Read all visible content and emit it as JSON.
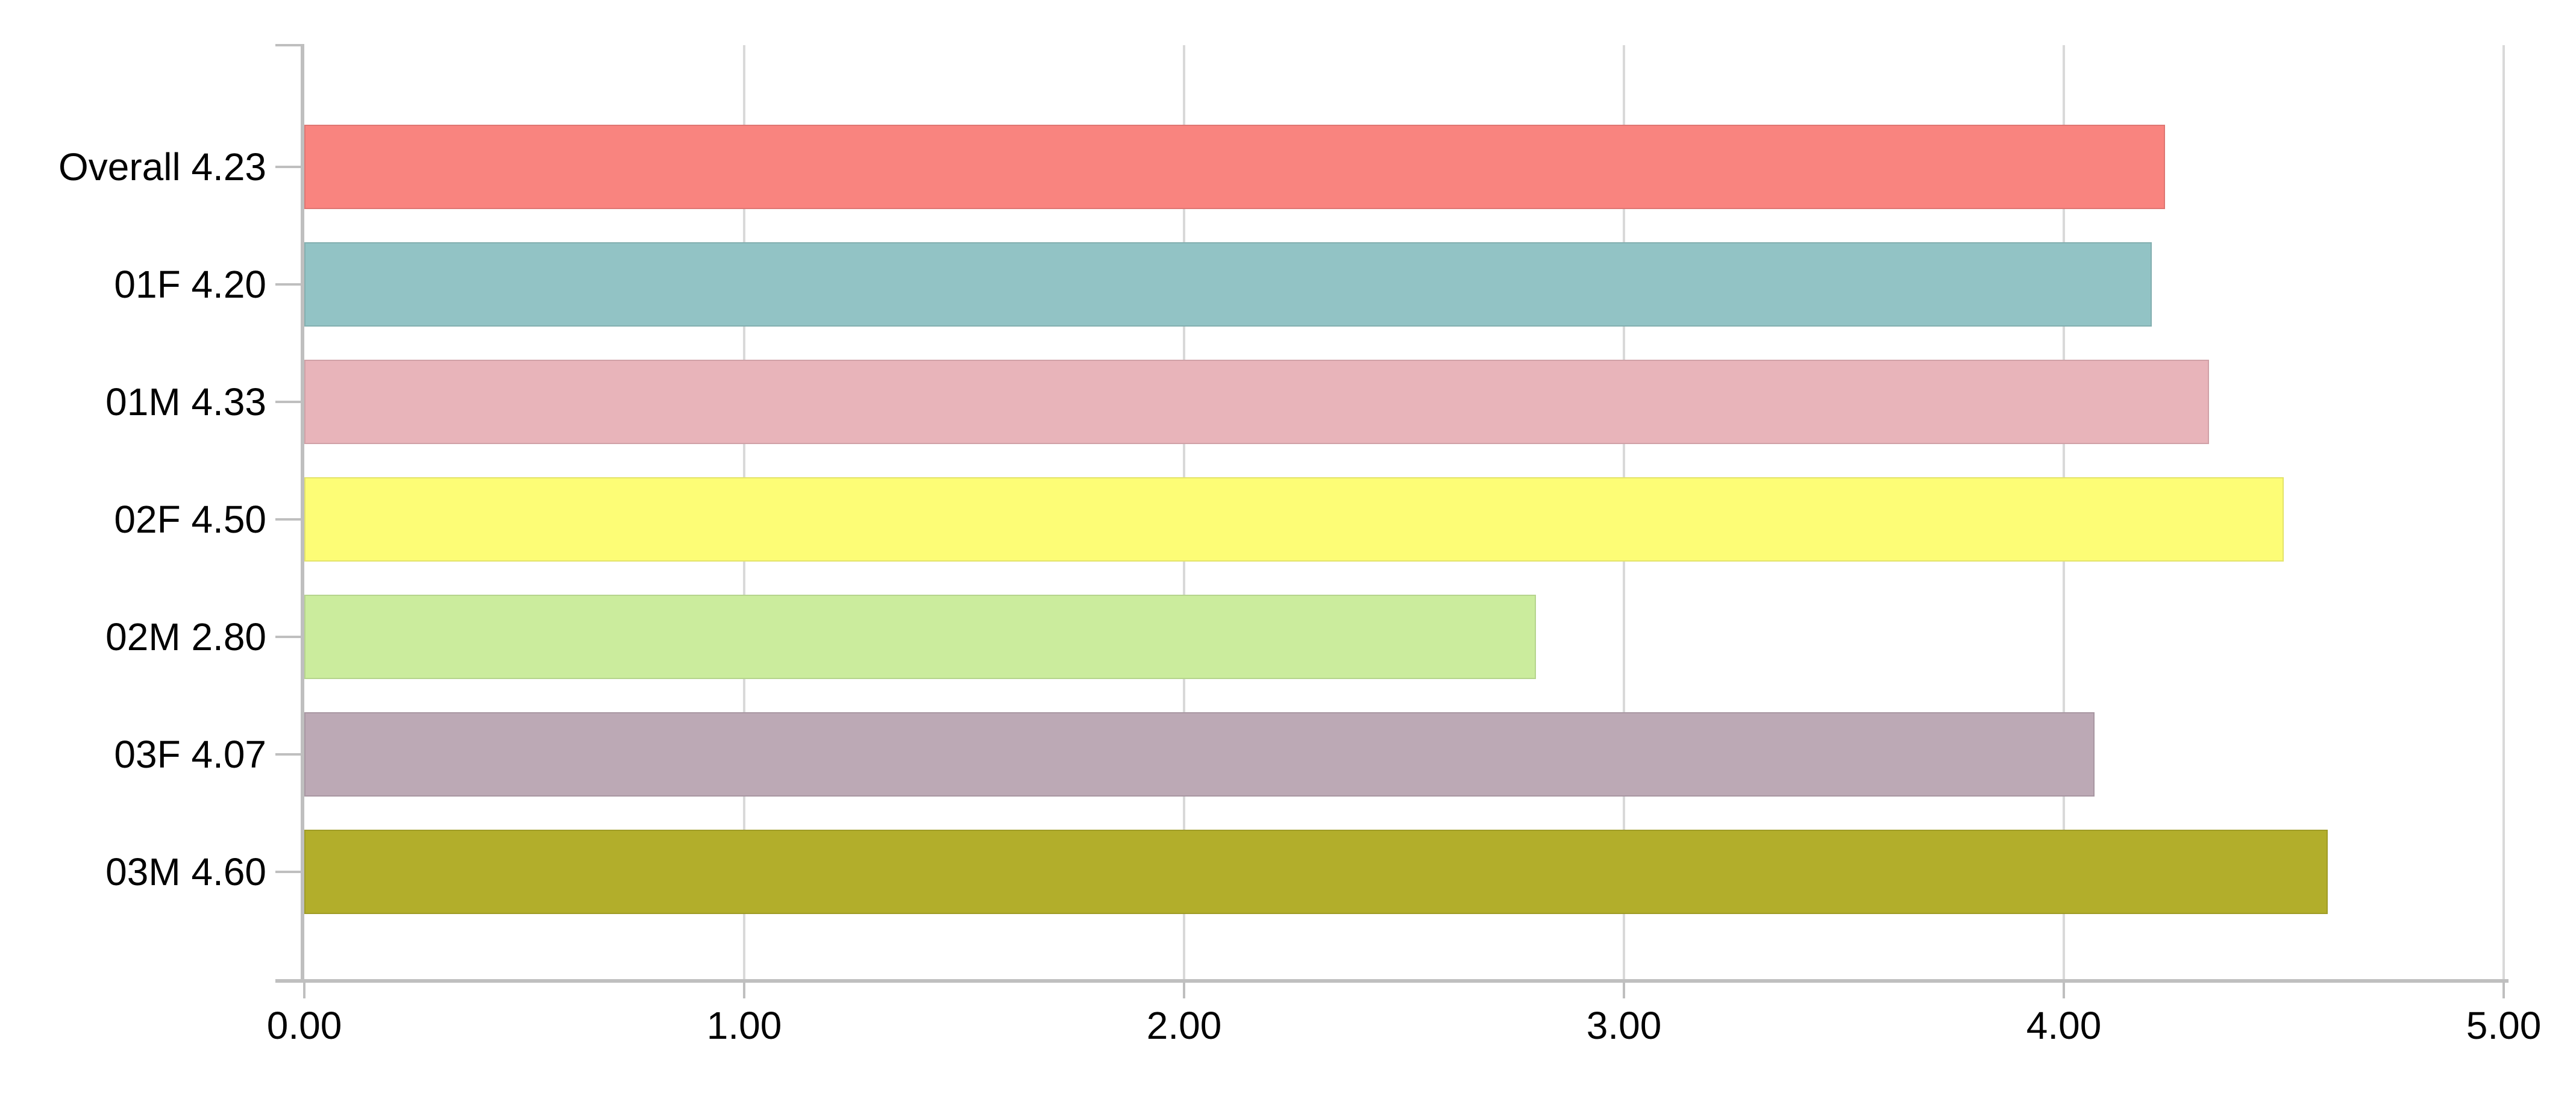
{
  "chart_data": {
    "type": "bar",
    "orientation": "horizontal",
    "title": "",
    "xlabel": "",
    "ylabel": "",
    "legend": "none",
    "grid": "vertical-major",
    "xlim": [
      0,
      5
    ],
    "x_ticks": [
      0,
      1,
      2,
      3,
      4,
      5
    ],
    "x_tick_labels": [
      "0.00",
      "1.00",
      "2.00",
      "3.00",
      "4.00",
      "5.00"
    ],
    "categories": [
      "Overall",
      "01F",
      "01M",
      "02F",
      "02M",
      "03F",
      "03M"
    ],
    "values": [
      4.23,
      4.2,
      4.33,
      4.5,
      2.8,
      4.07,
      4.6
    ],
    "category_labels": [
      "Overall 4.23",
      "01F 4.20",
      "01M 4.33",
      "02F 4.50",
      "02M 2.80",
      "03F 4.07",
      "03M 4.60"
    ],
    "bar_colors": [
      "#f9847f",
      "#92c3c5",
      "#e8b4ba",
      "#fdfd76",
      "#cbec9d",
      "#bca9b5",
      "#b2ae2b"
    ],
    "colors": {
      "gridline": "#d9d9d9",
      "axis": "#bfbfbf",
      "text": "#000000",
      "background": "#ffffff"
    }
  }
}
